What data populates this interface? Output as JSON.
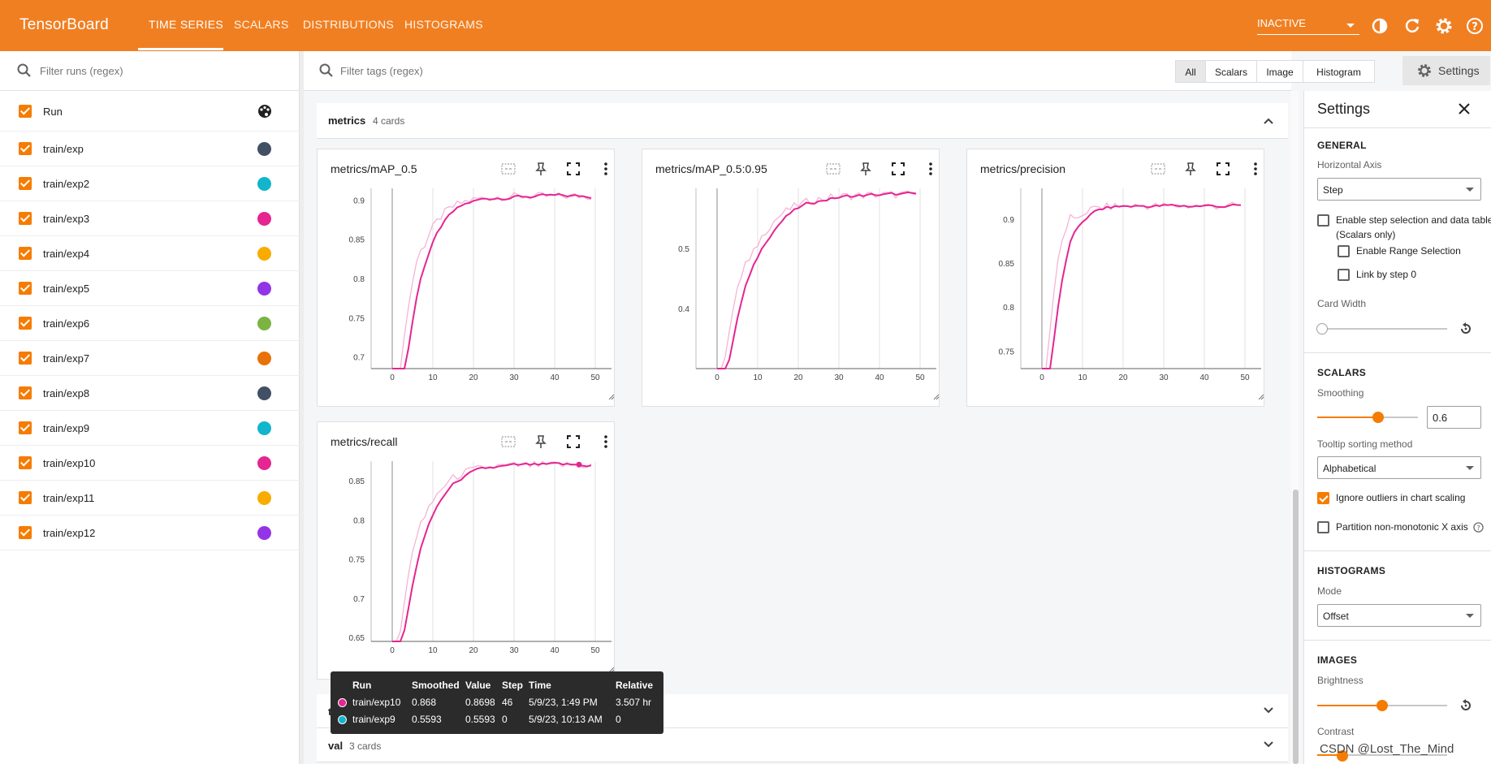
{
  "app": {
    "brand": "TensorBoard",
    "accent": "#f07f22"
  },
  "nav": {
    "tabs": [
      "TIME SERIES",
      "SCALARS",
      "DISTRIBUTIONS",
      "HISTOGRAMS"
    ],
    "active": "TIME SERIES",
    "status": "INACTIVE"
  },
  "sidebar": {
    "filter_placeholder": "Filter runs (regex)",
    "header_label": "Run",
    "runs": [
      {
        "name": "train/exp",
        "color": "#425066"
      },
      {
        "name": "train/exp2",
        "color": "#12b5cb"
      },
      {
        "name": "train/exp3",
        "color": "#e52592"
      },
      {
        "name": "train/exp4",
        "color": "#f9ab00"
      },
      {
        "name": "train/exp5",
        "color": "#9334e6"
      },
      {
        "name": "train/exp6",
        "color": "#7cb342"
      },
      {
        "name": "train/exp7",
        "color": "#e8710a"
      },
      {
        "name": "train/exp8",
        "color": "#425066"
      },
      {
        "name": "train/exp9",
        "color": "#12b5cb"
      },
      {
        "name": "train/exp10",
        "color": "#e52592"
      },
      {
        "name": "train/exp11",
        "color": "#f9ab00"
      },
      {
        "name": "train/exp12",
        "color": "#9334e6"
      }
    ]
  },
  "main": {
    "tag_placeholder": "Filter tags (regex)",
    "type_filters": [
      "All",
      "Scalars",
      "Image",
      "Histogram"
    ],
    "settings_button": "Settings",
    "groups": [
      {
        "name": "metrics",
        "count": "4 cards"
      },
      {
        "name": "train",
        "count": ""
      },
      {
        "name": "val",
        "count": "3 cards"
      }
    ],
    "cards": [
      {
        "title": "metrics/mAP_0.5",
        "yticks": [
          "0.9",
          "0.85",
          "0.8",
          "0.75",
          "0.7"
        ],
        "xticks": [
          "0",
          "10",
          "20",
          "30",
          "40",
          "50"
        ]
      },
      {
        "title": "metrics/mAP_0.5:0.95",
        "yticks": [
          "0.5",
          "0.4"
        ],
        "xticks": [
          "0",
          "10",
          "20",
          "30",
          "40",
          "50"
        ]
      },
      {
        "title": "metrics/precision",
        "yticks": [
          "0.9",
          "0.85",
          "0.8",
          "0.75"
        ],
        "xticks": [
          "0",
          "10",
          "20",
          "30",
          "40",
          "50"
        ]
      },
      {
        "title": "metrics/recall",
        "yticks": [
          "0.85",
          "0.8",
          "0.75",
          "0.7",
          "0.65"
        ],
        "xticks": [
          "0",
          "10",
          "20",
          "30",
          "40",
          "50"
        ]
      }
    ]
  },
  "tooltip": {
    "headers": [
      "Run",
      "Smoothed",
      "Value",
      "Step",
      "Time",
      "Relative"
    ],
    "rows": [
      {
        "run": "train/exp10",
        "color": "#e52592",
        "smoothed": "0.868",
        "value": "0.8698",
        "step": "46",
        "time": "5/9/23, 1:49 PM",
        "relative": "3.507 hr"
      },
      {
        "run": "train/exp9",
        "color": "#12b5cb",
        "smoothed": "0.5593",
        "value": "0.5593",
        "step": "0",
        "time": "5/9/23, 10:13 AM",
        "relative": "0"
      }
    ]
  },
  "settings": {
    "title": "Settings",
    "general": "GENERAL",
    "horizontal_axis_label": "Horizontal Axis",
    "horizontal_axis_value": "Step",
    "step_selection_line1": "Enable step selection and data table",
    "step_selection_line2": "(Scalars only)",
    "range_selection": "Enable Range Selection",
    "link_by_step": "Link by step 0",
    "card_width": "Card Width",
    "card_width_level": 0,
    "scalars": "SCALARS",
    "smoothing_label": "Smoothing",
    "smoothing_value": "0.6",
    "tooltip_sort_label": "Tooltip sorting method",
    "tooltip_sort_value": "Alphabetical",
    "ignore_outliers": "Ignore outliers in chart scaling",
    "partition": "Partition non-monotonic X axis",
    "histograms": "HISTOGRAMS",
    "mode_label": "Mode",
    "mode_value": "Offset",
    "images": "IMAGES",
    "brightness": "Brightness",
    "brightness_level": 0.5,
    "contrast": "Contrast"
  },
  "watermark": "CSDN @Lost_The_Mind"
}
